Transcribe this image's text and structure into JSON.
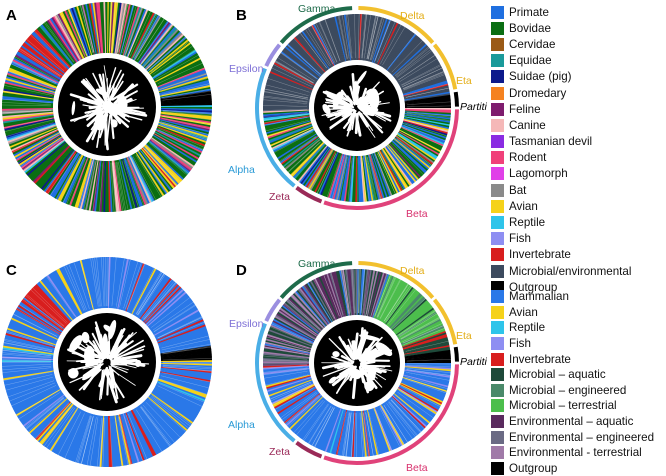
{
  "figure": {
    "panels": [
      {
        "letter": "A",
        "colorScheme": "host",
        "arcs": false
      },
      {
        "letter": "B",
        "colorScheme": "host",
        "arcs": true
      },
      {
        "letter": "C",
        "colorScheme": "ecology",
        "arcs": false
      },
      {
        "letter": "D",
        "colorScheme": "ecology",
        "arcs": true
      }
    ],
    "clades": {
      "gamma": {
        "label": "Gamma",
        "color": "#1e6b4a"
      },
      "delta": {
        "label": "Delta",
        "color": "#f2c02e"
      },
      "eta": {
        "label": "Eta",
        "color": "#f2c02e"
      },
      "partiti": {
        "label": "Partiti",
        "color": "#000000"
      },
      "epsilon": {
        "label": "Epsilon",
        "color": "#9b8fe0"
      },
      "alpha": {
        "label": "Alpha",
        "color": "#4aaee6"
      },
      "zeta": {
        "label": "Zeta",
        "color": "#9a2a58"
      },
      "beta": {
        "label": "Beta",
        "color": "#e0427a"
      }
    }
  },
  "legend_host": {
    "items": [
      {
        "label": "Primate",
        "color": "#1f6fe0"
      },
      {
        "label": "Bovidae",
        "color": "#0a6e12"
      },
      {
        "label": "Cervidae",
        "color": "#9a5a16"
      },
      {
        "label": "Equidae",
        "color": "#1a9a9a"
      },
      {
        "label": "Suidae (pig)",
        "color": "#0c1a8c"
      },
      {
        "label": "Dromedary",
        "color": "#f58220"
      },
      {
        "label": "Feline",
        "color": "#7e1c6e"
      },
      {
        "label": "Canine",
        "color": "#f5b8b8"
      },
      {
        "label": "Tasmanian devil",
        "color": "#8a2be2"
      },
      {
        "label": "Rodent",
        "color": "#f0407a"
      },
      {
        "label": "Lagomorph",
        "color": "#e040e8"
      },
      {
        "label": "Bat",
        "color": "#8a8a8a"
      },
      {
        "label": "Avian",
        "color": "#f5d21a"
      },
      {
        "label": "Reptile",
        "color": "#2ec4ea"
      },
      {
        "label": "Fish",
        "color": "#8e8ef2"
      },
      {
        "label": "Invertebrate",
        "color": "#d81e1e"
      },
      {
        "label": "Microbial/environmental",
        "color": "#3c4a5e"
      },
      {
        "label": "Outgroup",
        "color": "#000000"
      }
    ]
  },
  "legend_ecology": {
    "items": [
      {
        "label": "Mammalian",
        "color": "#2a78e8"
      },
      {
        "label": "Avian",
        "color": "#f5d21a"
      },
      {
        "label": "Reptile",
        "color": "#2ec4ea"
      },
      {
        "label": "Fish",
        "color": "#8e8ef2"
      },
      {
        "label": "Invertebrate",
        "color": "#d81e1e"
      },
      {
        "label": "Microbial – aquatic",
        "color": "#1e4a3a"
      },
      {
        "label": "Microbial – engineered",
        "color": "#4a8a6a"
      },
      {
        "label": "Microbial – terrestrial",
        "color": "#4cbe4c"
      },
      {
        "label": "Environmental – aquatic",
        "color": "#5a2a5e"
      },
      {
        "label": "Environmental – engineered",
        "color": "#6a6a84"
      },
      {
        "label": "Environmental - terrestrial",
        "color": "#a07aa8"
      },
      {
        "label": "Outgroup",
        "color": "#000000"
      }
    ]
  }
}
